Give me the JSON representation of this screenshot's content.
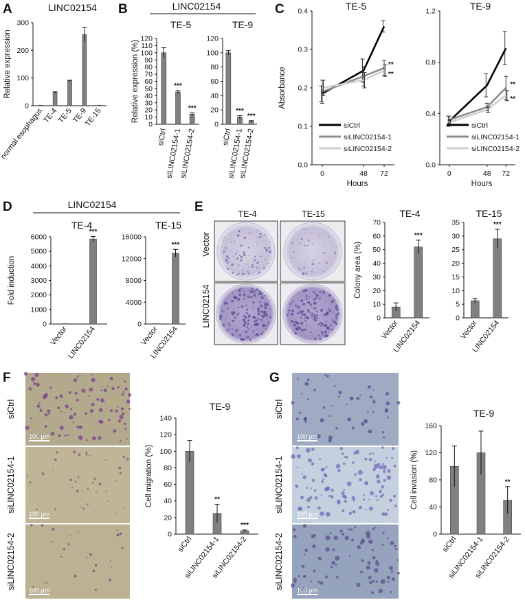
{
  "panels": {
    "A": {
      "label": "A"
    },
    "B": {
      "label": "B",
      "group_title": "LINC02154"
    },
    "C": {
      "label": "C"
    },
    "D": {
      "label": "D",
      "group_title": "LINC02154"
    },
    "E": {
      "label": "E",
      "photo_cols": [
        "TE-4",
        "TE-15"
      ],
      "photo_rows": [
        "Vector",
        "LINC02154"
      ]
    },
    "F": {
      "label": "F",
      "photo_rows": [
        "siCtrl",
        "siLINC02154-1",
        "siLINC02154-2"
      ],
      "scale_bar": "100 µm"
    },
    "G": {
      "label": "G",
      "photo_rows": [
        "siCtrl",
        "siLINC02154-1",
        "siLINC02154-2"
      ],
      "scale_bar": "100 µm"
    }
  },
  "colors": {
    "bar": "#808080",
    "siCtrl": "#000000",
    "si1": "#8c8c8c",
    "si2": "#cfcfcf",
    "photoA": "#c9c3d9",
    "photoB": "#a79bc7",
    "photoF": "#b8ad8f",
    "photoG": "#a6b1c7"
  },
  "chart_data": [
    {
      "id": "A",
      "type": "bar",
      "title": "LINC02154",
      "xlabel": "",
      "ylabel": "Relative expression",
      "categories": [
        "normal esophagus",
        "TE-4",
        "TE-5",
        "TE-9",
        "TE-15"
      ],
      "values": [
        2,
        48,
        90,
        257,
        2
      ],
      "errors": [
        0,
        2,
        2,
        25,
        0
      ],
      "sig": [
        "",
        "",
        "",
        "",
        ""
      ],
      "ylim": [
        0,
        300
      ],
      "yticks": [
        0,
        100,
        200,
        300
      ],
      "ytick_labels": [
        "0",
        "100",
        "200",
        "300"
      ]
    },
    {
      "id": "B1",
      "type": "bar",
      "title": "TE-5",
      "xlabel": "",
      "ylabel": "Relative expression (%)",
      "categories": [
        "siCtrl",
        "siLINC02154-1",
        "siLINC02154-2"
      ],
      "values": [
        100,
        45,
        14
      ],
      "errors": [
        7,
        2,
        2
      ],
      "sig": [
        "",
        "***",
        "***"
      ],
      "ylim": [
        0,
        120
      ],
      "yticks": [
        0,
        10,
        20,
        30,
        40,
        50,
        60,
        70,
        80,
        90,
        100,
        110,
        120
      ],
      "ytick_labels": [
        "0",
        "10",
        "20",
        "30",
        "40",
        "50",
        "60",
        "70",
        "80",
        "90",
        "100",
        "110",
        "120"
      ]
    },
    {
      "id": "B2",
      "type": "bar",
      "title": "TE-9",
      "xlabel": "",
      "ylabel": "",
      "categories": [
        "siCtrl",
        "siLINC02154-1",
        "siLINC02154-2"
      ],
      "values": [
        100,
        10,
        4
      ],
      "errors": [
        3,
        2,
        1
      ],
      "sig": [
        "",
        "***",
        "***"
      ],
      "ylim": [
        0,
        120
      ],
      "yticks": [
        0,
        20,
        40,
        60,
        80,
        100,
        120
      ],
      "ytick_labels": [
        "0",
        "20",
        "40",
        "60",
        "80",
        "100",
        "120"
      ]
    },
    {
      "id": "C1",
      "type": "line",
      "title": "TE-5",
      "xlabel": "Hours",
      "ylabel": "Absorbance",
      "x": [
        0,
        48,
        72
      ],
      "xlim": [
        -12,
        84
      ],
      "ylim": [
        0,
        0.4
      ],
      "yticks": [
        0,
        0.1,
        0.2,
        0.3,
        0.4
      ],
      "ytick_labels": [
        "0.0",
        "0.1",
        "0.2",
        "0.3",
        "0.4"
      ],
      "legend": "bottom-left",
      "series": [
        {
          "name": "siCtrl",
          "values": [
            0.185,
            0.245,
            0.36
          ],
          "errors": [
            0.02,
            0.03,
            0.015
          ],
          "sig": ""
        },
        {
          "name": "siLINC02154-1",
          "values": [
            0.19,
            0.23,
            0.252
          ],
          "errors": [
            0.03,
            0.025,
            0.02
          ],
          "sig": "**"
        },
        {
          "name": "siLINC02154-2",
          "values": [
            0.2,
            0.22,
            0.245
          ],
          "errors": [
            0.02,
            0.02,
            0.015
          ],
          "sig": "**"
        }
      ]
    },
    {
      "id": "C2",
      "type": "line",
      "title": "TE-9",
      "xlabel": "Hours",
      "ylabel": "",
      "x": [
        0,
        48,
        72
      ],
      "xlim": [
        -12,
        84
      ],
      "ylim": [
        0,
        1.2
      ],
      "yticks": [
        0,
        0.4,
        0.8,
        1.2
      ],
      "ytick_labels": [
        "0.0",
        "0.4",
        "0.8",
        "1.2"
      ],
      "legend": "bottom-left",
      "series": [
        {
          "name": "siCtrl",
          "values": [
            0.34,
            0.62,
            0.91
          ],
          "errors": [
            0.04,
            0.09,
            0.13
          ],
          "sig": ""
        },
        {
          "name": "siLINC02154-1",
          "values": [
            0.35,
            0.45,
            0.6
          ],
          "errors": [
            0.03,
            0.03,
            0.09
          ],
          "sig": "**"
        },
        {
          "name": "siLINC02154-2",
          "values": [
            0.33,
            0.43,
            0.54
          ],
          "errors": [
            0.02,
            0.02,
            0.04
          ],
          "sig": "**"
        }
      ]
    },
    {
      "id": "D1",
      "type": "bar",
      "title": "TE-4",
      "xlabel": "",
      "ylabel": "Fold induction",
      "categories": [
        "Vector",
        "LINC02154"
      ],
      "values": [
        30,
        5850
      ],
      "errors": [
        0,
        170
      ],
      "sig": [
        "",
        "***"
      ],
      "ylim": [
        0,
        6000
      ],
      "yticks": [
        0,
        1000,
        2000,
        3000,
        4000,
        5000,
        6000
      ],
      "ytick_labels": [
        "0",
        "1000",
        "2000",
        "3000",
        "4000",
        "5000",
        "6000"
      ]
    },
    {
      "id": "D2",
      "type": "bar",
      "title": "TE-15",
      "xlabel": "",
      "ylabel": "",
      "categories": [
        "Vector",
        "LINC02154"
      ],
      "values": [
        80,
        13000
      ],
      "errors": [
        0,
        700
      ],
      "sig": [
        "",
        "***"
      ],
      "ylim": [
        0,
        16000
      ],
      "yticks": [
        0,
        4000,
        8000,
        12000,
        16000
      ],
      "ytick_labels": [
        "0",
        "4000",
        "8000",
        "12000",
        "16000"
      ]
    },
    {
      "id": "E1",
      "type": "bar",
      "title": "TE-4",
      "xlabel": "",
      "ylabel": "Colony area (%)",
      "categories": [
        "Vector",
        "LINC02154"
      ],
      "values": [
        8,
        52
      ],
      "errors": [
        3,
        5
      ],
      "sig": [
        "",
        "***"
      ],
      "ylim": [
        0,
        70
      ],
      "yticks": [
        0,
        10,
        20,
        30,
        40,
        50,
        60,
        70
      ],
      "ytick_labels": [
        "0",
        "10",
        "20",
        "30",
        "40",
        "50",
        "60",
        "70"
      ]
    },
    {
      "id": "E2",
      "type": "bar",
      "title": "TE-15",
      "xlabel": "",
      "ylabel": "",
      "categories": [
        "Vector",
        "LINC02154"
      ],
      "values": [
        6.3,
        29
      ],
      "errors": [
        0.8,
        3.5
      ],
      "sig": [
        "",
        "***"
      ],
      "ylim": [
        0,
        35
      ],
      "yticks": [
        0,
        5,
        10,
        15,
        20,
        25,
        30,
        35
      ],
      "ytick_labels": [
        "0",
        "5",
        "10",
        "15",
        "20",
        "25",
        "30",
        "35"
      ]
    },
    {
      "id": "F",
      "type": "bar",
      "title": "TE-9",
      "xlabel": "",
      "ylabel": "Cell migration (%)",
      "categories": [
        "siCtrl",
        "siLINC02154-1",
        "siLINC02154-2"
      ],
      "values": [
        100,
        25,
        4
      ],
      "errors": [
        13,
        11,
        1
      ],
      "sig": [
        "",
        "**",
        "***"
      ],
      "ylim": [
        0,
        140
      ],
      "yticks": [
        0,
        20,
        40,
        60,
        80,
        100,
        120,
        140
      ],
      "ytick_labels": [
        "0",
        "20",
        "40",
        "60",
        "80",
        "100",
        "120",
        "140"
      ]
    },
    {
      "id": "G",
      "type": "bar",
      "title": "TE-9",
      "xlabel": "",
      "ylabel": "Cell invasion (%)",
      "categories": [
        "siCtrl",
        "siLINC02154-1",
        "siLINC02154-2"
      ],
      "values": [
        100,
        120,
        50
      ],
      "errors": [
        30,
        32,
        20
      ],
      "sig": [
        "",
        "",
        "**"
      ],
      "ylim": [
        0,
        160
      ],
      "yticks": [
        0,
        40,
        80,
        120,
        160
      ],
      "ytick_labels": [
        "0",
        "40",
        "80",
        "120",
        "160"
      ]
    }
  ]
}
